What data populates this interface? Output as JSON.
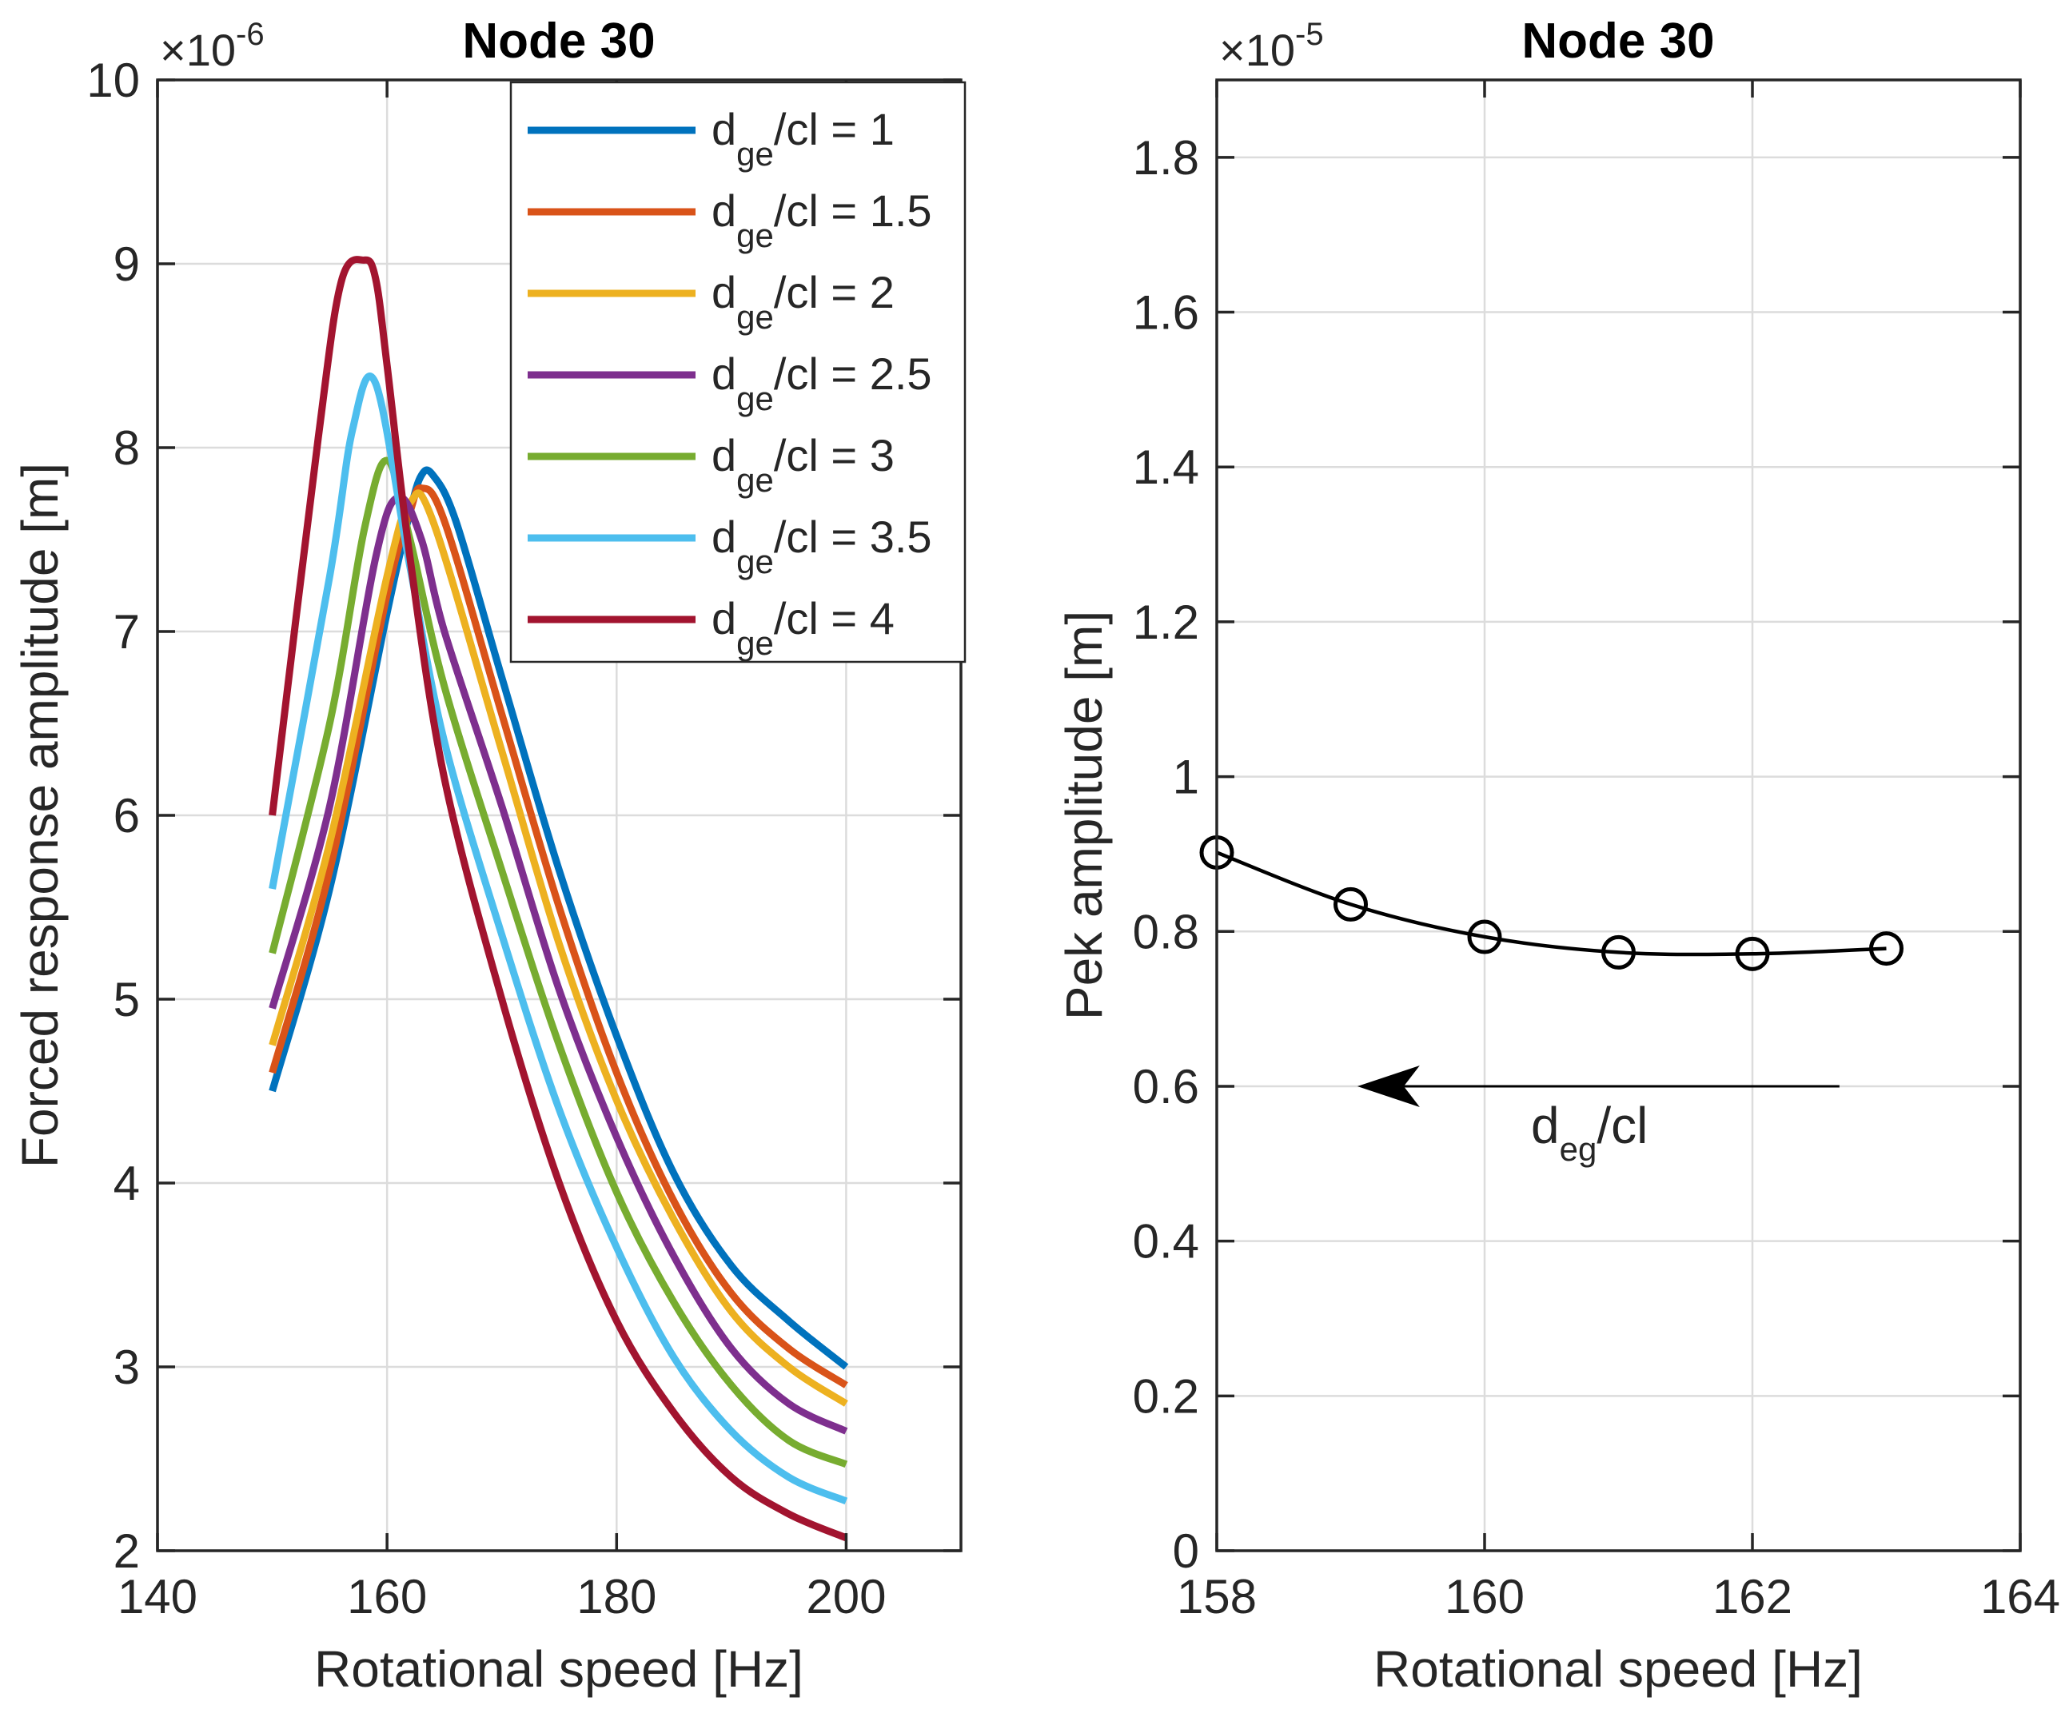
{
  "chart_data": [
    {
      "type": "line",
      "title": "Node 30",
      "xlabel": "Rotational speed [Hz]",
      "ylabel": "Forced response amplitude [m]",
      "y_exponent_label": "×10",
      "y_exponent_power": "-6",
      "xlim": [
        140,
        210
      ],
      "ylim": [
        2,
        10
      ],
      "xticks": [
        140,
        160,
        180,
        200
      ],
      "yticks": [
        2,
        3,
        4,
        5,
        6,
        7,
        8,
        9,
        10
      ],
      "xtick_labels": [
        "140",
        "160",
        "180",
        "200"
      ],
      "ytick_labels": [
        "2",
        "3",
        "4",
        "5",
        "6",
        "7",
        "8",
        "9",
        "10"
      ],
      "grid": true,
      "legend_position": "top-right",
      "series": [
        {
          "name": "d_ge/cl = 1",
          "label_main": "d",
          "label_sub": "ge",
          "label_rest": "/cl = 1",
          "color": "#0072BD",
          "x": [
            150,
            155,
            160,
            162,
            163,
            164,
            166,
            170,
            175,
            180,
            185,
            190,
            195,
            200
          ],
          "y": [
            4.5,
            5.6,
            7.1,
            7.65,
            7.85,
            7.85,
            7.6,
            6.75,
            5.7,
            4.8,
            4.05,
            3.55,
            3.25,
            3.0
          ]
        },
        {
          "name": "d_ge/cl = 1.5",
          "label_main": "d",
          "label_sub": "ge",
          "label_rest": "/cl = 1.5",
          "color": "#D95319",
          "x": [
            150,
            155,
            160,
            162,
            163,
            165,
            170,
            175,
            180,
            185,
            190,
            195,
            200
          ],
          "y": [
            4.6,
            5.7,
            7.2,
            7.65,
            7.78,
            7.6,
            6.55,
            5.5,
            4.6,
            3.9,
            3.4,
            3.1,
            2.9
          ]
        },
        {
          "name": "d_ge/cl = 2",
          "label_main": "d",
          "label_sub": "ge",
          "label_rest": "/cl = 2",
          "color": "#EDB120",
          "x": [
            150,
            155,
            160,
            162,
            164,
            170,
            175,
            180,
            185,
            190,
            195,
            200
          ],
          "y": [
            4.75,
            5.85,
            7.3,
            7.7,
            7.6,
            6.35,
            5.3,
            4.45,
            3.8,
            3.3,
            3.0,
            2.8
          ]
        },
        {
          "name": "d_ge/cl = 2.5",
          "label_main": "d",
          "label_sub": "ge",
          "label_rest": "/cl = 2.5",
          "color": "#7E2F8E",
          "x": [
            150,
            155,
            159,
            161,
            163,
            165,
            170,
            175,
            180,
            185,
            190,
            195,
            200
          ],
          "y": [
            4.95,
            6.05,
            7.4,
            7.73,
            7.5,
            7.0,
            6.05,
            5.05,
            4.25,
            3.6,
            3.1,
            2.8,
            2.65
          ]
        },
        {
          "name": "d_ge/cl = 3",
          "label_main": "d",
          "label_sub": "ge",
          "label_rest": "/cl = 3",
          "color": "#77AC30",
          "x": [
            150,
            155,
            158,
            160,
            162,
            165,
            170,
            175,
            180,
            185,
            190,
            195,
            200
          ],
          "y": [
            5.25,
            6.5,
            7.55,
            7.93,
            7.5,
            6.7,
            5.7,
            4.75,
            3.95,
            3.35,
            2.9,
            2.6,
            2.47
          ]
        },
        {
          "name": "d_ge/cl = 3.5",
          "label_main": "d",
          "label_sub": "ge",
          "label_rest": "/cl = 3.5",
          "color": "#4DBEEE",
          "x": [
            150,
            155,
            157,
            159,
            162,
            165,
            170,
            175,
            180,
            185,
            190,
            195,
            200
          ],
          "y": [
            5.6,
            7.3,
            8.1,
            8.35,
            7.35,
            6.4,
            5.35,
            4.4,
            3.65,
            3.05,
            2.65,
            2.4,
            2.27
          ]
        },
        {
          "name": "d_ge/cl = 4",
          "label_main": "d",
          "label_sub": "ge",
          "label_rest": "/cl = 4",
          "color": "#A2142F",
          "x": [
            150,
            154,
            156,
            158,
            159,
            160,
            162,
            165,
            170,
            175,
            180,
            185,
            190,
            195,
            200
          ],
          "y": [
            6.0,
            8.05,
            8.9,
            9.02,
            8.92,
            8.45,
            7.4,
            6.2,
            5.0,
            4.0,
            3.25,
            2.75,
            2.4,
            2.2,
            2.07
          ]
        }
      ]
    },
    {
      "type": "line",
      "title": "Node 30",
      "xlabel": "Rotational speed [Hz]",
      "ylabel": "Pek amplitude [m]",
      "y_exponent_label": "×10",
      "y_exponent_power": "-5",
      "xlim": [
        158,
        164
      ],
      "ylim": [
        0,
        1.9
      ],
      "xticks": [
        158,
        160,
        162,
        164
      ],
      "yticks": [
        0,
        0.2,
        0.4,
        0.6,
        0.8,
        1,
        1.2,
        1.4,
        1.6,
        1.8
      ],
      "xtick_labels": [
        "158",
        "160",
        "162",
        "164"
      ],
      "ytick_labels": [
        "0",
        "0.2",
        "0.4",
        "0.6",
        "0.8",
        "1",
        "1.2",
        "1.4",
        "1.6",
        "1.8"
      ],
      "grid": true,
      "series": [
        {
          "color": "#000000",
          "marker": "circle",
          "x": [
            158,
            159,
            160,
            161,
            162,
            163
          ],
          "y": [
            0.902,
            0.835,
            0.793,
            0.773,
            0.771,
            0.778
          ]
        }
      ],
      "annotation": {
        "label_main": "d",
        "label_sub": "eg",
        "label_rest": "/cl",
        "arrow_from": [
          162.65,
          0.6
        ],
        "arrow_to": [
          159.05,
          0.6
        ]
      }
    }
  ]
}
